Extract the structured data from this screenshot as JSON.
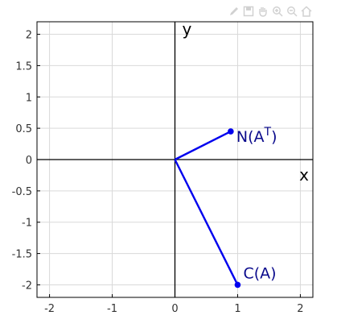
{
  "toolbar": {
    "buttons": [
      {
        "name": "pencil-icon"
      },
      {
        "name": "save-icon"
      },
      {
        "name": "pan-hand-icon"
      },
      {
        "name": "zoom-in-icon"
      },
      {
        "name": "zoom-out-icon"
      },
      {
        "name": "home-icon"
      }
    ]
  },
  "colors": {
    "vector": "#0000ee",
    "axis": "#000000",
    "grid": "#d9d9d9",
    "plot_bg": "#ffffff"
  },
  "chart_data": {
    "type": "line",
    "title": "",
    "xlabel": "x",
    "ylabel": "y",
    "xlim": [
      -2.2,
      2.2
    ],
    "ylim": [
      -2.2,
      2.2
    ],
    "grid": true,
    "x_ticks": [
      -2,
      -1,
      0,
      1,
      2
    ],
    "x_tick_labels": [
      "-2",
      "-1",
      "0",
      "1",
      "2"
    ],
    "y_ticks": [
      2,
      1.5,
      1,
      0.5,
      0,
      -0.5,
      -1,
      -1.5,
      -2
    ],
    "y_tick_labels": [
      "2",
      "1.5",
      "1",
      "0.5",
      "0",
      "-0.5",
      "-1",
      "-1.5",
      "-2"
    ],
    "vectors": [
      {
        "label_base": "N(A",
        "label_sup": "T",
        "label_end": ")",
        "from": [
          0,
          0
        ],
        "to": [
          0.89,
          0.45
        ]
      },
      {
        "label_base": "C(A)",
        "label_sup": "",
        "label_end": "",
        "from": [
          0,
          0
        ],
        "to": [
          1.0,
          -2.0
        ]
      }
    ]
  }
}
